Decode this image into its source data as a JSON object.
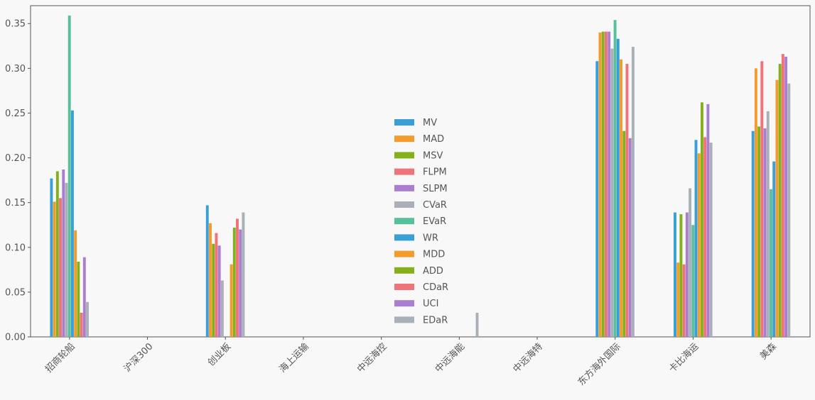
{
  "chart_data": {
    "type": "bar",
    "title": "",
    "xlabel": "",
    "ylabel": "",
    "ylim": [
      0,
      0.37
    ],
    "yticks": [
      "0.00",
      "0.05",
      "0.10",
      "0.15",
      "0.20",
      "0.25",
      "0.30",
      "0.35"
    ],
    "legend_position": "center",
    "grid": false,
    "categories": [
      "招商轮船",
      "沪深300",
      "创业板",
      "海上运输",
      "中远海控",
      "中远海能",
      "中远海特",
      "东方海外国际",
      "卡比海运",
      "美森"
    ],
    "series": [
      {
        "name": "MV",
        "color": "#3a9fd6",
        "values": [
          0.177,
          0,
          0.147,
          0,
          0,
          0,
          0,
          0.308,
          0.139,
          0.23
        ]
      },
      {
        "name": "MAD",
        "color": "#f39c2e",
        "values": [
          0.151,
          0,
          0.127,
          0,
          0,
          0,
          0,
          0.34,
          0.083,
          0.3
        ]
      },
      {
        "name": "MSV",
        "color": "#84b01c",
        "values": [
          0.185,
          0,
          0.104,
          0,
          0,
          0,
          0,
          0.341,
          0.137,
          0.235
        ]
      },
      {
        "name": "FLPM",
        "color": "#ee747a",
        "values": [
          0.155,
          0,
          0.116,
          0,
          0,
          0,
          0,
          0.341,
          0.081,
          0.308
        ]
      },
      {
        "name": "SLPM",
        "color": "#a97ed0",
        "values": [
          0.187,
          0,
          0.102,
          0,
          0,
          0,
          0,
          0.341,
          0.139,
          0.233
        ]
      },
      {
        "name": "CVaR",
        "color": "#a9b0b8",
        "values": [
          0.172,
          0,
          0.063,
          0,
          0,
          0,
          0,
          0.322,
          0.166,
          0.252
        ]
      },
      {
        "name": "EVaR",
        "color": "#58c09c",
        "values": [
          0.359,
          0,
          0,
          0,
          0,
          0,
          0,
          0.354,
          0.125,
          0.165
        ]
      },
      {
        "name": "WR",
        "color": "#3a9fd6",
        "values": [
          0.253,
          0,
          0,
          0,
          0,
          0,
          0,
          0.333,
          0.22,
          0.196
        ]
      },
      {
        "name": "MDD",
        "color": "#f39c2e",
        "values": [
          0.119,
          0,
          0.081,
          0,
          0,
          0,
          0,
          0.31,
          0.205,
          0.287
        ]
      },
      {
        "name": "ADD",
        "color": "#84b01c",
        "values": [
          0.084,
          0,
          0.122,
          0,
          0,
          0,
          0,
          0.23,
          0.262,
          0.305
        ]
      },
      {
        "name": "CDaR",
        "color": "#ee747a",
        "values": [
          0.027,
          0,
          0.132,
          0,
          0,
          0,
          0,
          0.305,
          0.223,
          0.316
        ]
      },
      {
        "name": "UCI",
        "color": "#a97ed0",
        "values": [
          0.089,
          0,
          0.12,
          0,
          0,
          0,
          0,
          0.222,
          0.26,
          0.313
        ]
      },
      {
        "name": "EDaR",
        "color": "#a9b0b8",
        "values": [
          0.039,
          0,
          0.139,
          0,
          0,
          0.027,
          0,
          0.324,
          0.217,
          0.283
        ]
      }
    ]
  }
}
